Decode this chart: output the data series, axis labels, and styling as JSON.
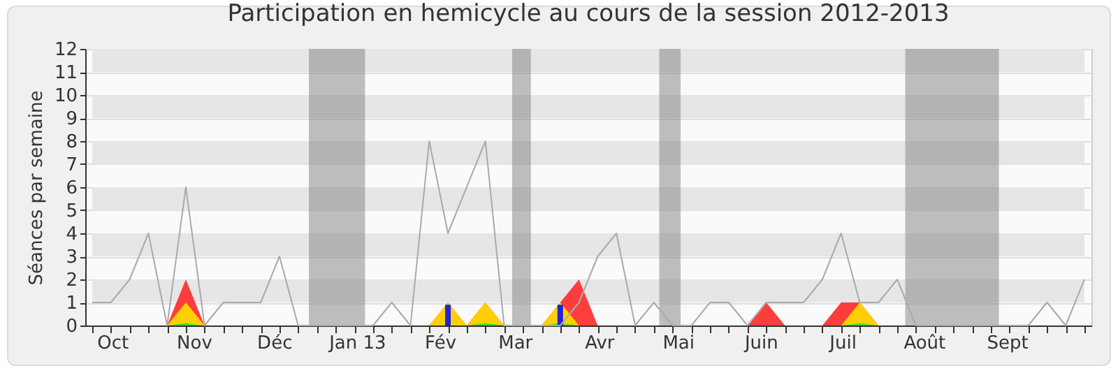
{
  "chart_data": {
    "type": "line",
    "title": "Participation en hemicycle au cours de la session 2012-2013",
    "ylabel": "Séances par semaine",
    "x": [
      "2012-09-24",
      "2012-10-01",
      "2012-10-08",
      "2012-10-15",
      "2012-10-22",
      "2012-10-29",
      "2012-11-05",
      "2012-11-12",
      "2012-11-19",
      "2012-11-26",
      "2012-12-03",
      "2012-12-10",
      "2012-12-17",
      "2012-12-24",
      "2012-12-31",
      "2013-01-07",
      "2013-01-14",
      "2013-01-21",
      "2013-01-28",
      "2013-02-04",
      "2013-02-11",
      "2013-02-18",
      "2013-02-25",
      "2013-03-04",
      "2013-03-11",
      "2013-03-18",
      "2013-03-25",
      "2013-04-01",
      "2013-04-08",
      "2013-04-15",
      "2013-04-22",
      "2013-04-29",
      "2013-05-06",
      "2013-05-13",
      "2013-05-20",
      "2013-05-27",
      "2013-06-03",
      "2013-06-10",
      "2013-06-17",
      "2013-06-24",
      "2013-07-01",
      "2013-07-08",
      "2013-07-15",
      "2013-07-22",
      "2013-07-29",
      "2013-08-05",
      "2013-08-12",
      "2013-08-19",
      "2013-08-26",
      "2013-09-02",
      "2013-09-09",
      "2013-09-16",
      "2013-09-23",
      "2013-09-30"
    ],
    "xlim": [
      "2012-09-24",
      "2013-09-30"
    ],
    "xticks": [
      {
        "value": "2012-09-24",
        "label": null
      },
      {
        "value": "2012-10-01",
        "label": null
      },
      {
        "value": "2012-10-01T12:00",
        "label": "Oct"
      },
      {
        "value": "2012-10-08",
        "label": null
      },
      {
        "value": "2012-10-15",
        "label": null
      },
      {
        "value": "2012-10-22",
        "label": null
      },
      {
        "value": "2012-10-29",
        "label": null
      },
      {
        "value": "2012-11-01",
        "label": "Nov"
      },
      {
        "value": "2012-11-05",
        "label": null
      },
      {
        "value": "2012-11-12",
        "label": null
      },
      {
        "value": "2012-11-19",
        "label": null
      },
      {
        "value": "2012-11-26",
        "label": null
      },
      {
        "value": "2012-12-03",
        "label": null
      },
      {
        "value": "2012-12-01",
        "label": "Déc"
      },
      {
        "value": "2012-12-10",
        "label": null
      },
      {
        "value": "2012-12-17",
        "label": null
      },
      {
        "value": "2012-12-24",
        "label": null
      },
      {
        "value": "2012-12-31",
        "label": null
      },
      {
        "value": "2013-01-01",
        "label": "Jan 13"
      },
      {
        "value": "2013-01-07",
        "label": null
      },
      {
        "value": "2013-01-14",
        "label": null
      },
      {
        "value": "2013-01-21",
        "label": null
      },
      {
        "value": "2013-01-28",
        "label": null
      },
      {
        "value": "2013-02-01",
        "label": "Fév"
      },
      {
        "value": "2013-02-04",
        "label": null
      },
      {
        "value": "2013-02-11",
        "label": null
      },
      {
        "value": "2013-02-18",
        "label": null
      },
      {
        "value": "2013-02-25",
        "label": null
      },
      {
        "value": "2013-03-01",
        "label": "Mar"
      },
      {
        "value": "2013-03-04",
        "label": null
      },
      {
        "value": "2013-03-11",
        "label": null
      },
      {
        "value": "2013-03-18",
        "label": null
      },
      {
        "value": "2013-03-25",
        "label": null
      },
      {
        "value": "2013-04-01",
        "label": null
      },
      {
        "value": "2013-04-01T12:00",
        "label": "Avr"
      },
      {
        "value": "2013-04-08",
        "label": null
      },
      {
        "value": "2013-04-15",
        "label": null
      },
      {
        "value": "2013-04-22",
        "label": null
      },
      {
        "value": "2013-04-29",
        "label": null
      },
      {
        "value": "2013-05-01",
        "label": "Mai"
      },
      {
        "value": "2013-05-06",
        "label": null
      },
      {
        "value": "2013-05-13",
        "label": null
      },
      {
        "value": "2013-05-20",
        "label": null
      },
      {
        "value": "2013-05-27",
        "label": null
      },
      {
        "value": "2013-06-01",
        "label": "Juin"
      },
      {
        "value": "2013-06-03",
        "label": null
      },
      {
        "value": "2013-06-10",
        "label": null
      },
      {
        "value": "2013-06-17",
        "label": null
      },
      {
        "value": "2013-06-24",
        "label": null
      },
      {
        "value": "2013-07-01",
        "label": null
      },
      {
        "value": "2013-07-01T12:00",
        "label": "Juil"
      },
      {
        "value": "2013-07-08",
        "label": null
      },
      {
        "value": "2013-07-15",
        "label": null
      },
      {
        "value": "2013-07-22",
        "label": null
      },
      {
        "value": "2013-07-29",
        "label": null
      },
      {
        "value": "2013-08-01",
        "label": "Août"
      },
      {
        "value": "2013-08-05",
        "label": null
      },
      {
        "value": "2013-08-12",
        "label": null
      },
      {
        "value": "2013-08-19",
        "label": null
      },
      {
        "value": "2013-08-26",
        "label": null
      },
      {
        "value": "2013-09-02",
        "label": null
      },
      {
        "value": "2013-09-01",
        "label": "Sept"
      },
      {
        "value": "2013-09-09",
        "label": null
      },
      {
        "value": "2013-09-16",
        "label": null
      },
      {
        "value": "2013-09-23",
        "label": null
      },
      {
        "value": "2013-09-30",
        "label": null
      }
    ],
    "ylim": [
      0,
      12
    ],
    "yticks": [
      0,
      1,
      2,
      3,
      4,
      5,
      6,
      7,
      8,
      9,
      10,
      11,
      12
    ],
    "grid": "y",
    "bands": [
      {
        "axis": "x",
        "from": "2012-12-14",
        "to": "2013-01-04",
        "color": "#808080"
      },
      {
        "axis": "x",
        "from": "2013-02-28",
        "to": "2013-03-07",
        "color": "#808080"
      },
      {
        "axis": "x",
        "from": "2013-04-24",
        "to": "2013-05-02",
        "color": "#808080"
      },
      {
        "axis": "x",
        "from": "2013-07-25",
        "to": "2013-08-29",
        "color": "#808080"
      }
    ],
    "series": [
      {
        "color": "#aaaaaa",
        "values": [
          1,
          1,
          2,
          4,
          0,
          6,
          0,
          1,
          1,
          1,
          3,
          0,
          0,
          0,
          0,
          0,
          1,
          0,
          8,
          4,
          6,
          8,
          0,
          0,
          0,
          0,
          1,
          3,
          4,
          0,
          1,
          0,
          0,
          1,
          1,
          0,
          1,
          1,
          1,
          2,
          4,
          1,
          1,
          2,
          0,
          0,
          0,
          0,
          0,
          0,
          0,
          1,
          0,
          2
        ]
      },
      {
        "type": "area",
        "color": "#ff3333",
        "values": [
          0,
          0,
          0,
          0,
          0,
          2,
          0,
          0,
          0,
          0,
          0,
          0,
          0,
          0,
          0,
          0,
          0,
          0,
          0,
          1,
          0,
          1,
          0,
          0,
          0,
          1,
          2,
          0,
          0,
          0,
          0,
          0,
          0,
          0,
          0,
          0,
          1,
          0,
          0,
          0,
          1,
          1,
          0,
          0,
          0,
          0,
          0,
          0,
          0,
          0,
          0,
          0,
          0,
          0
        ]
      },
      {
        "type": "area",
        "color": "#ffd700",
        "values": [
          0,
          0,
          0,
          0,
          0,
          1,
          0,
          0,
          0,
          0,
          0,
          0,
          0,
          0,
          0,
          0,
          0,
          0,
          0,
          1,
          0,
          1,
          0,
          0,
          0,
          1,
          0,
          0,
          0,
          0,
          0,
          0,
          0,
          0,
          0,
          0,
          0,
          0,
          0,
          0,
          0,
          1,
          0,
          0,
          0,
          0,
          0,
          0,
          0,
          0,
          0,
          0,
          0,
          0
        ]
      },
      {
        "type": "area",
        "color": "#33dd33",
        "values": [
          0,
          0,
          0,
          0,
          0,
          0.1,
          0,
          0,
          0,
          0,
          0,
          0,
          0,
          0,
          0,
          0,
          0,
          0,
          0,
          0,
          0,
          0.1,
          0,
          0,
          0,
          0.1,
          0,
          0,
          0,
          0,
          0,
          0,
          0,
          0,
          0,
          0,
          0,
          0,
          0,
          0,
          0,
          0.1,
          0,
          0,
          0,
          0,
          0,
          0,
          0,
          0,
          0,
          0,
          0,
          0
        ]
      },
      {
        "type": "bar",
        "color": "#2222dd",
        "values": [
          0,
          0,
          0,
          0,
          0,
          0,
          0,
          0,
          0,
          0,
          0,
          0,
          0,
          0,
          0,
          0,
          0,
          0,
          0,
          0.9,
          0,
          0,
          0,
          0,
          0,
          0.9,
          0,
          0,
          0,
          0,
          0,
          0,
          0,
          0,
          0,
          0,
          0,
          0,
          0,
          0,
          0,
          0,
          0,
          0,
          0,
          0,
          0,
          0,
          0,
          0,
          0,
          0,
          0,
          0
        ]
      }
    ]
  }
}
